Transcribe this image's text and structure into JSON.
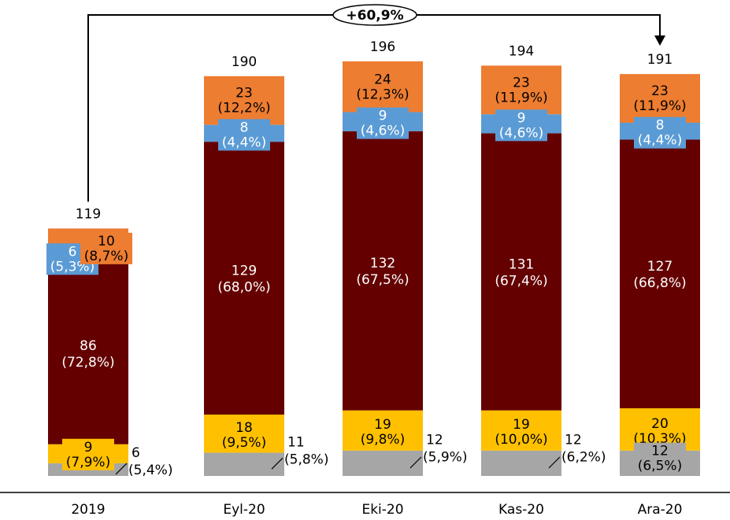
{
  "chart_data": {
    "type": "bar",
    "stacked": true,
    "categories": [
      "2019",
      "Eyl-20",
      "Eki-20",
      "Kas-20",
      "Ara-20"
    ],
    "totals": [
      119,
      190,
      196,
      194,
      191
    ],
    "growth_label": "+60,9%",
    "series": [
      {
        "color": "#a6a6a6",
        "values": [
          6,
          11,
          12,
          12,
          12
        ],
        "value_labels": [
          "6",
          "11",
          "12",
          "12",
          "12"
        ],
        "pct_labels": [
          "(5,4%)",
          "(5,8%)",
          "(5,9%)",
          "(6,2%)",
          "(6,5%)"
        ]
      },
      {
        "color": "#ffc000",
        "values": [
          9,
          18,
          19,
          19,
          20
        ],
        "value_labels": [
          "9",
          "18",
          "19",
          "19",
          "20"
        ],
        "pct_labels": [
          "(7,9%)",
          "(9,5%)",
          "(9,8%)",
          "(10,0%)",
          "(10,3%)"
        ]
      },
      {
        "color": "#640000",
        "values": [
          86,
          129,
          132,
          131,
          127
        ],
        "value_labels": [
          "86",
          "129",
          "132",
          "131",
          "127"
        ],
        "pct_labels": [
          "(72,8%)",
          "(68,0%)",
          "(67,5%)",
          "(67,4%)",
          "(66,8%)"
        ]
      },
      {
        "color": "#5b9bd5",
        "values": [
          6,
          8,
          9,
          9,
          8
        ],
        "value_labels": [
          "6",
          "8",
          "9",
          "9",
          "8"
        ],
        "pct_labels": [
          "(5,3%)",
          "(4,4%)",
          "(4,6%)",
          "(4,6%)",
          "(4,4%)"
        ]
      },
      {
        "color": "#ed7d31",
        "values": [
          10,
          23,
          24,
          23,
          23
        ],
        "value_labels": [
          "10",
          "23",
          "24",
          "23",
          "23"
        ],
        "pct_labels": [
          "(8,7%)",
          "(12,2%)",
          "(12,3%)",
          "(11,9%)",
          "(11,9%)"
        ]
      }
    ],
    "ylim": [
      0,
      196
    ],
    "grid": false,
    "legend": "none"
  }
}
